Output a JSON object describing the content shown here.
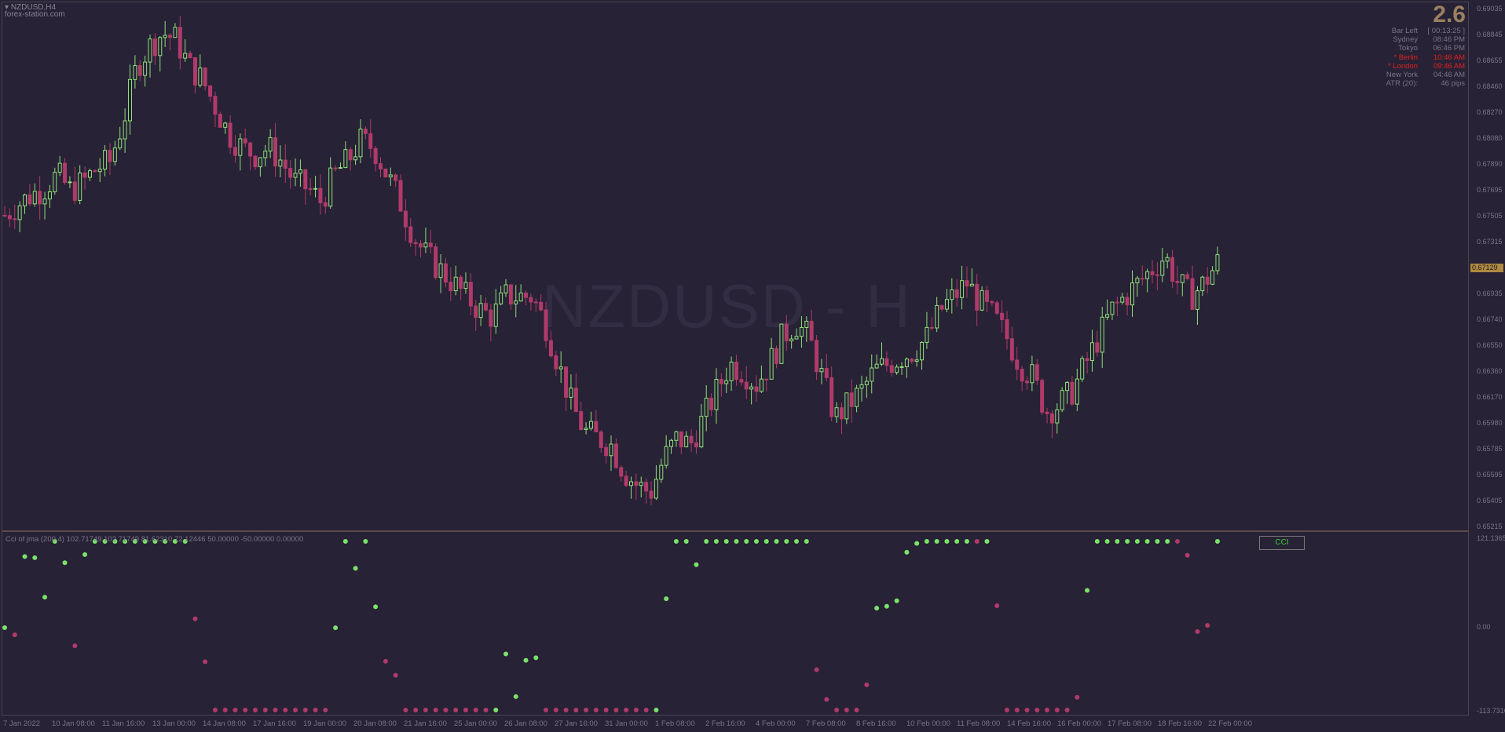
{
  "chart": {
    "symbol_label": "NZDUSD,H4",
    "site": "forex-station.com",
    "watermark": "NZDUSD - H",
    "current_price": "0.67129"
  },
  "info_panel": {
    "value": "2.6",
    "rows": [
      {
        "label": "Bar Left",
        "value": "[ 00:13:25 ]",
        "highlight": false
      },
      {
        "label": "Sydney",
        "value": "08:46 PM",
        "highlight": false
      },
      {
        "label": "Tokyo",
        "value": "06:46 PM",
        "highlight": false
      },
      {
        "label": "* Berlin",
        "value": "10:46 AM",
        "highlight": true
      },
      {
        "label": "* London",
        "value": "09:46 AM",
        "highlight": true
      },
      {
        "label": "New York",
        "value": "04:46 AM",
        "highlight": false
      },
      {
        "label": "ATR (20):",
        "value": "46 pips",
        "highlight": false
      }
    ]
  },
  "price_axis": [
    "0.69035",
    "0.68845",
    "0.68655",
    "0.68460",
    "0.68270",
    "0.68080",
    "0.67890",
    "0.67695",
    "0.67505",
    "0.67315",
    "0.66935",
    "0.66740",
    "0.66550",
    "0.66360",
    "0.66170",
    "0.65980",
    "0.65785",
    "0.65595",
    "0.65405",
    "0.65215"
  ],
  "indicator": {
    "label": "Cci of jma (200,4) 102.71749 102.71749 81.62310 72.12446 50.00000 -50.00000 0.00000",
    "button": "CCI",
    "axis": [
      "121.13653",
      "0.00",
      "-113.7310"
    ]
  },
  "time_axis": [
    "7 Jan 2022",
    "10 Jan 08:00",
    "11 Jan 16:00",
    "13 Jan 00:00",
    "14 Jan 08:00",
    "17 Jan 16:00",
    "19 Jan 00:00",
    "20 Jan 08:00",
    "21 Jan 16:00",
    "25 Jan 00:00",
    "26 Jan 08:00",
    "27 Jan 16:00",
    "31 Jan 00:00",
    "1 Feb 08:00",
    "2 Feb 16:00",
    "4 Feb 00:00",
    "7 Feb 08:00",
    "8 Feb 16:00",
    "10 Feb 00:00",
    "11 Feb 08:00",
    "14 Feb 16:00",
    "16 Feb 00:00",
    "17 Feb 08:00",
    "18 Feb 16:00",
    "22 Feb 00:00"
  ],
  "colors": {
    "background": "#272235",
    "bull": "#8fe07a",
    "bear": "#b03a6a",
    "dot_up": "#7be36a",
    "dot_down": "#b03a6a"
  },
  "chart_data": {
    "type": "candlestick",
    "symbol": "NZDUSD",
    "timeframe": "H4",
    "close_path": [
      0.675,
      0.6758,
      0.6765,
      0.677,
      0.678,
      0.6768,
      0.6775,
      0.6785,
      0.679,
      0.682,
      0.686,
      0.6875,
      0.6885,
      0.688,
      0.686,
      0.685,
      0.683,
      0.681,
      0.68,
      0.6795,
      0.68,
      0.679,
      0.6775,
      0.677,
      0.676,
      0.678,
      0.679,
      0.6805,
      0.68,
      0.678,
      0.676,
      0.6735,
      0.672,
      0.671,
      0.67,
      0.669,
      0.668,
      0.6675,
      0.669,
      0.669,
      0.669,
      0.667,
      0.664,
      0.661,
      0.659,
      0.6585,
      0.658,
      0.656,
      0.655,
      0.6545,
      0.657,
      0.6585,
      0.658,
      0.66,
      0.662,
      0.664,
      0.6635,
      0.6625,
      0.664,
      0.666,
      0.667,
      0.666,
      0.663,
      0.66,
      0.661,
      0.662,
      0.6635,
      0.664,
      0.6645,
      0.665,
      0.666,
      0.668,
      0.669,
      0.67,
      0.6685,
      0.6675,
      0.666,
      0.664,
      0.663,
      0.6605,
      0.661,
      0.662,
      0.664,
      0.666,
      0.668,
      0.669,
      0.67,
      0.671,
      0.672,
      0.67,
      0.669,
      0.67,
      0.6715
    ]
  }
}
